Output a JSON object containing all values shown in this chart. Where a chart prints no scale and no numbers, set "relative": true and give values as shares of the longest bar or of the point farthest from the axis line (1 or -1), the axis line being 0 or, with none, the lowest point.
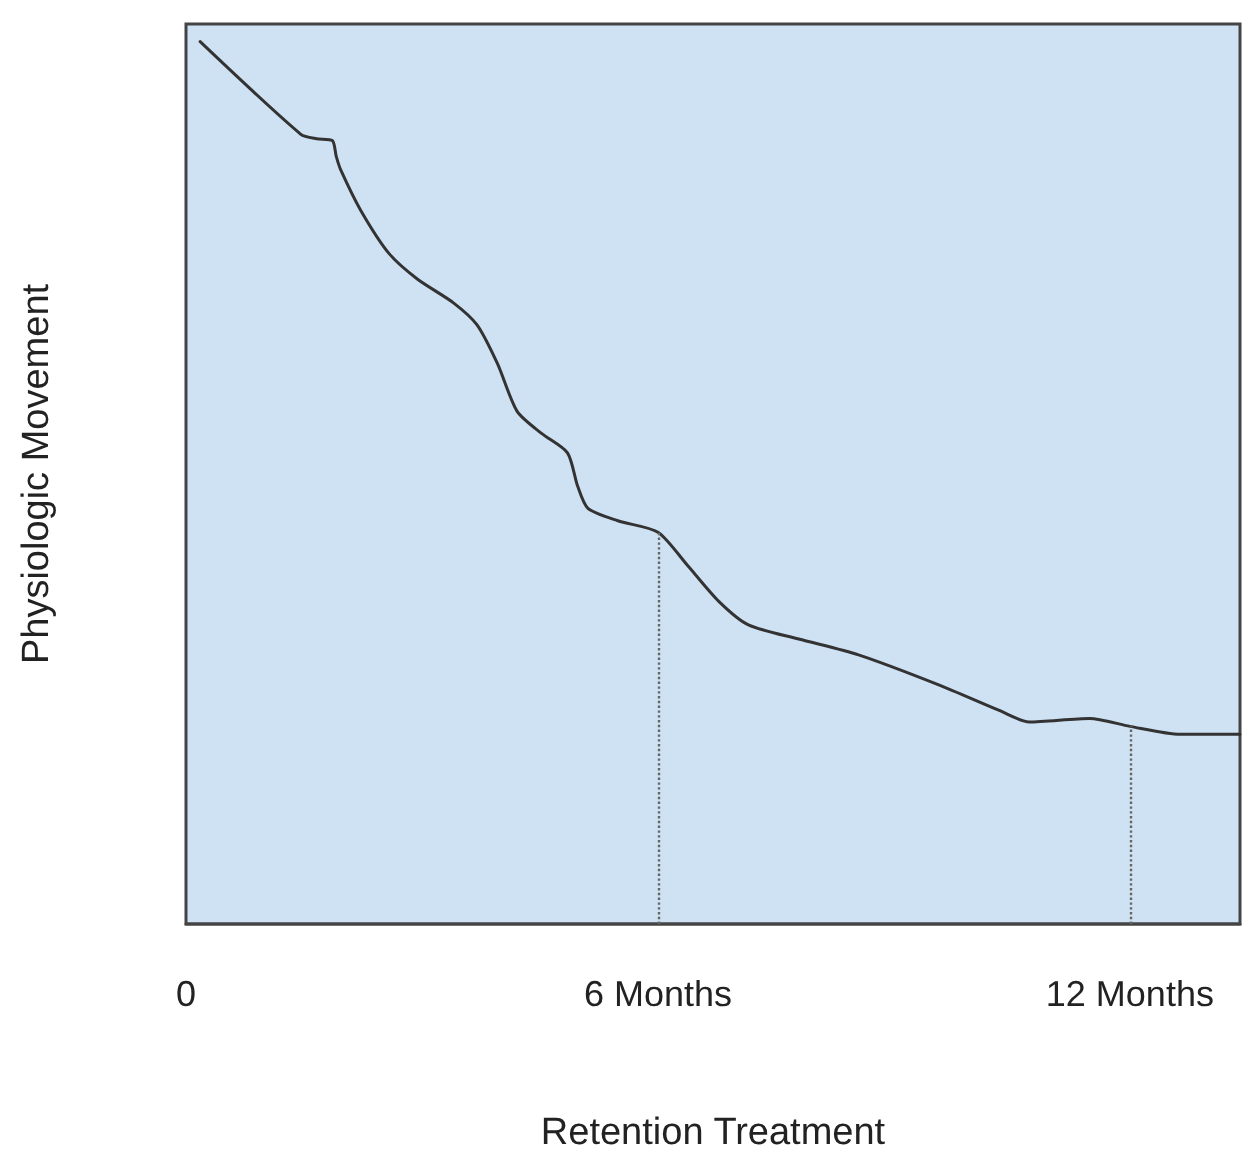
{
  "chart_data": {
    "type": "line",
    "relative": true,
    "xlabel": "Retention Treatment",
    "ylabel": "Physiologic Movement",
    "xlim": [
      0,
      13.4
    ],
    "xticks": [
      {
        "value": 0,
        "label": "0"
      },
      {
        "value": 6,
        "label": "6 Months"
      },
      {
        "value": 12,
        "label": "12 Months"
      }
    ],
    "x": [
      0.18,
      1.46,
      1.66,
      1.86,
      1.91,
      1.97,
      2.22,
      2.58,
      2.94,
      3.4,
      3.7,
      3.96,
      4.21,
      4.52,
      4.85,
      4.98,
      5.11,
      5.49,
      6.0,
      6.38,
      6.77,
      7.15,
      7.79,
      8.55,
      9.57,
      10.34,
      10.72,
      11.49,
      12.0,
      12.64,
      13.4
    ],
    "series": [
      {
        "color": "#333333",
        "values": [
          1.0,
          0.895,
          0.89,
          0.888,
          0.87,
          0.854,
          0.809,
          0.76,
          0.731,
          0.704,
          0.679,
          0.635,
          0.581,
          0.556,
          0.534,
          0.496,
          0.471,
          0.457,
          0.444,
          0.406,
          0.366,
          0.339,
          0.323,
          0.305,
          0.271,
          0.242,
          0.229,
          0.233,
          0.224,
          0.215,
          0.215
        ]
      }
    ],
    "ref_lines": [
      {
        "axis": "x",
        "value": 6,
        "color": "#666666",
        "line_style": "dotted"
      },
      {
        "axis": "x",
        "value": 12,
        "color": "#666666",
        "line_style": "dotted"
      }
    ],
    "marker": "none",
    "line_style": "solid"
  }
}
